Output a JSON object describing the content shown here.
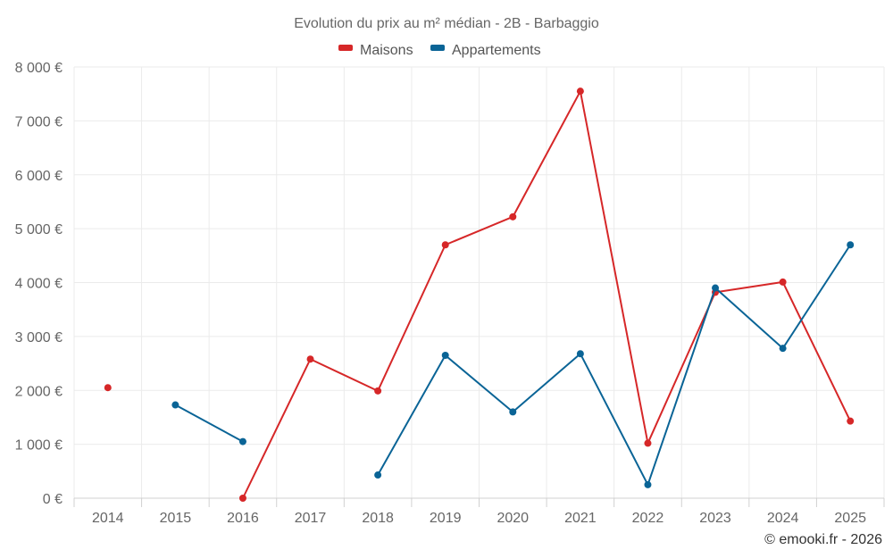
{
  "chart_data": {
    "type": "line",
    "title": "Evolution du prix au m² médian - 2B - Barbaggio",
    "categories": [
      "2014",
      "2015",
      "2016",
      "2017",
      "2018",
      "2019",
      "2020",
      "2021",
      "2022",
      "2023",
      "2024",
      "2025"
    ],
    "y_ticks": [
      "0 €",
      "1 000 €",
      "2 000 €",
      "3 000 €",
      "4 000 €",
      "5 000 €",
      "6 000 €",
      "7 000 €",
      "8 000 €"
    ],
    "ylim": [
      0,
      8000
    ],
    "grid": true,
    "legend_position": "top",
    "series": [
      {
        "name": "Maisons",
        "color": "#d62728",
        "values": [
          2050,
          null,
          0,
          2580,
          1990,
          4700,
          5220,
          7550,
          1020,
          3820,
          4010,
          1430
        ]
      },
      {
        "name": "Appartements",
        "color": "#0a6496",
        "values": [
          null,
          1730,
          1050,
          null,
          430,
          2650,
          1600,
          2680,
          250,
          3900,
          2780,
          4700
        ]
      }
    ]
  },
  "credit": "© emooki.fr - 2026"
}
